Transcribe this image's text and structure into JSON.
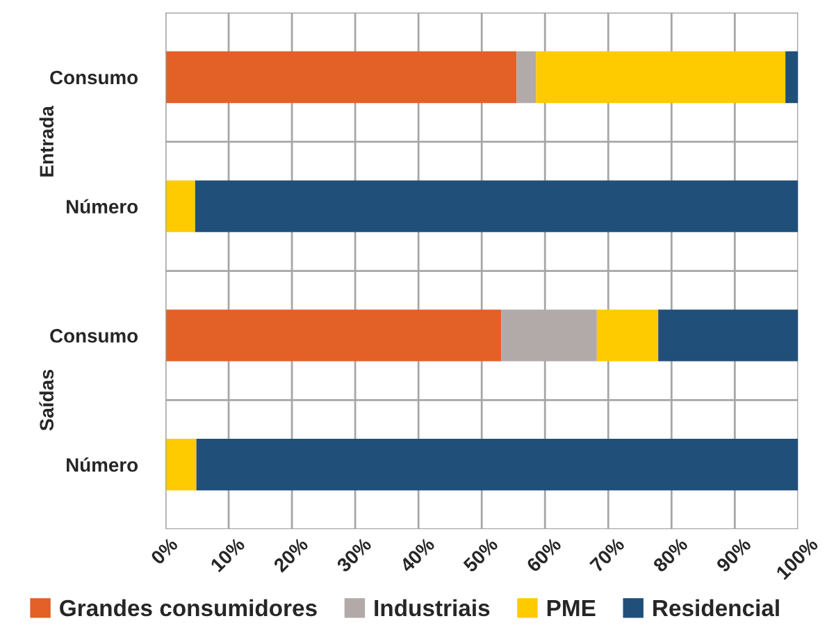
{
  "chart_data": {
    "type": "bar",
    "orientation": "horizontal",
    "stacked": true,
    "categories": [
      "Consumo",
      "Número",
      "Consumo",
      "Número"
    ],
    "series": [
      {
        "name": "Grandes consumidores",
        "color": "#e36027",
        "values": [
          55.5,
          0,
          53.1,
          0
        ]
      },
      {
        "name": "Industriais",
        "color": "#b2aaa8",
        "values": [
          3.1,
          null,
          15.1,
          0
        ]
      },
      {
        "name": "PME",
        "color": "#fecb00",
        "values": [
          39.4,
          4.7,
          9.7,
          4.9
        ]
      },
      {
        "name": "Residencial",
        "color": "#204f79",
        "values": [
          2.0,
          95.3,
          22.1,
          95.1
        ]
      }
    ],
    "xlim": [
      0,
      100
    ],
    "xticks": [
      {
        "value": 0,
        "label": "0%"
      },
      {
        "value": 10,
        "label": "10%"
      },
      {
        "value": 20,
        "label": "20%"
      },
      {
        "value": 30,
        "label": "30%"
      },
      {
        "value": 40,
        "label": "40%"
      },
      {
        "value": 50,
        "label": "50%"
      },
      {
        "value": 60,
        "label": "60%"
      },
      {
        "value": 70,
        "label": "70%"
      },
      {
        "value": 80,
        "label": "80%"
      },
      {
        "value": 90,
        "label": "90%"
      },
      {
        "value": 100,
        "label": "100%"
      }
    ],
    "annotations": [
      "Entrada",
      "Saídas"
    ],
    "grid": true,
    "legend": "bottom"
  }
}
